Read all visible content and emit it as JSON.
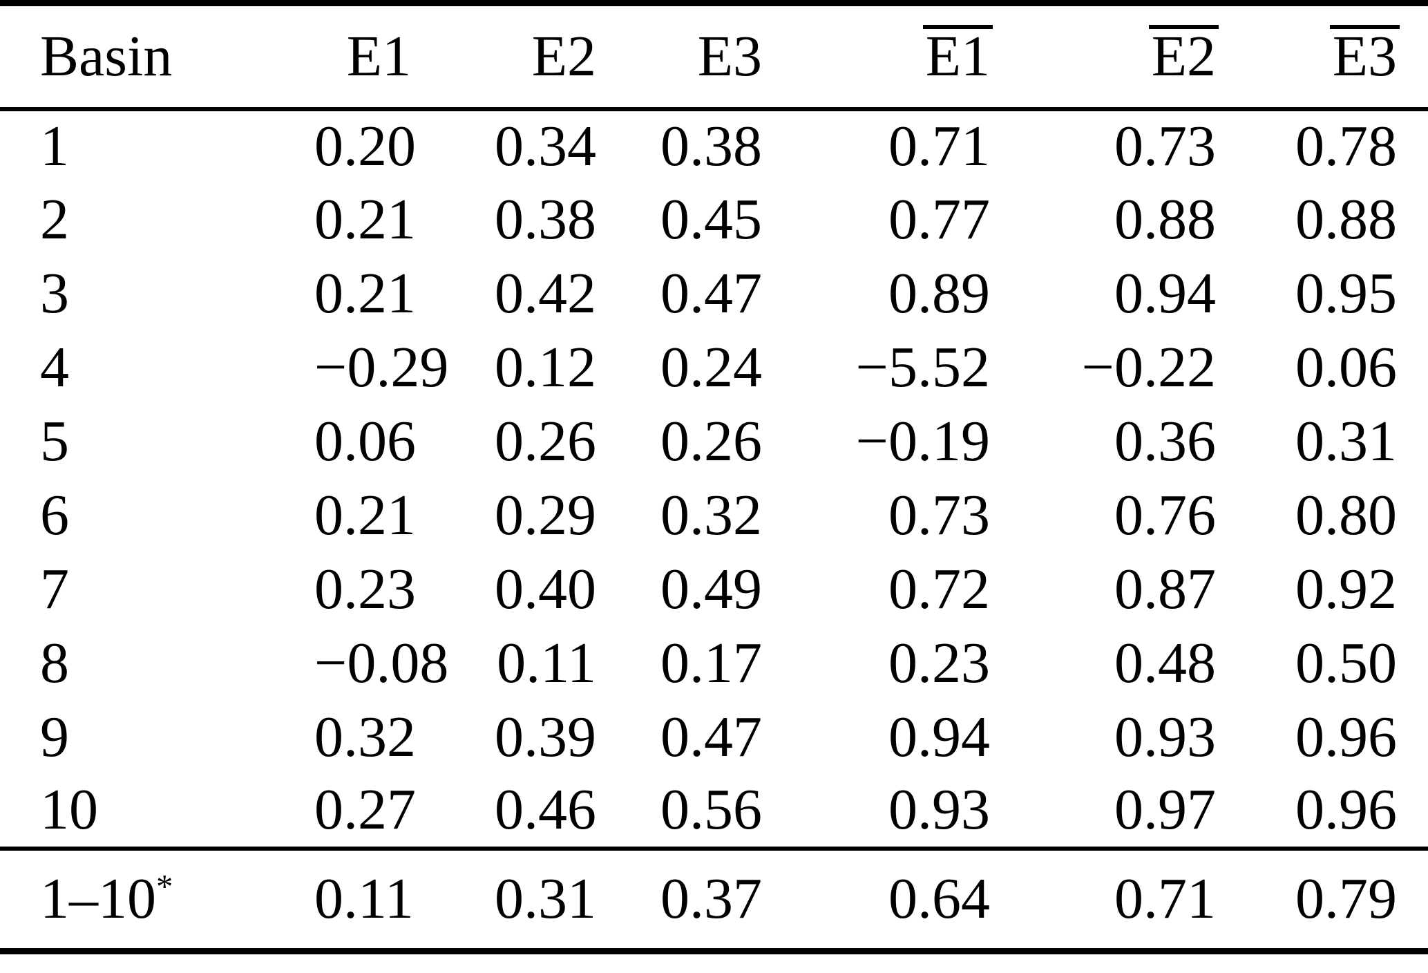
{
  "page": {
    "background_color": "#ffffff",
    "text_color": "#000000"
  },
  "table": {
    "columns": [
      {
        "key": "basin",
        "label": "Basin",
        "overline": false
      },
      {
        "key": "e1",
        "label": "E1",
        "overline": false
      },
      {
        "key": "e2",
        "label": "E2",
        "overline": false
      },
      {
        "key": "e3",
        "label": "E3",
        "overline": false
      },
      {
        "key": "e1-mean",
        "label": "E1",
        "overline": true
      },
      {
        "key": "e2-mean",
        "label": "E2",
        "overline": true
      },
      {
        "key": "e3-mean",
        "label": "E3",
        "overline": true
      }
    ],
    "rows": [
      [
        "1",
        "0.20",
        "0.34",
        "0.38",
        "0.71",
        "0.73",
        "0.78"
      ],
      [
        "2",
        "0.21",
        "0.38",
        "0.45",
        "0.77",
        "0.88",
        "0.88"
      ],
      [
        "3",
        "0.21",
        "0.42",
        "0.47",
        "0.89",
        "0.94",
        "0.95"
      ],
      [
        "4",
        "−0.29",
        "0.12",
        "0.24",
        "−5.52",
        "−0.22",
        "0.06"
      ],
      [
        "5",
        "0.06",
        "0.26",
        "0.26",
        "−0.19",
        "0.36",
        "0.31"
      ],
      [
        "6",
        "0.21",
        "0.29",
        "0.32",
        "0.73",
        "0.76",
        "0.80"
      ],
      [
        "7",
        "0.23",
        "0.40",
        "0.49",
        "0.72",
        "0.87",
        "0.92"
      ],
      [
        "8",
        "−0.08",
        "0.11",
        "0.17",
        "0.23",
        "0.48",
        "0.50"
      ],
      [
        "9",
        "0.32",
        "0.39",
        "0.47",
        "0.94",
        "0.93",
        "0.96"
      ],
      [
        "10",
        "0.27",
        "0.46",
        "0.56",
        "0.93",
        "0.97",
        "0.96"
      ]
    ],
    "summary": {
      "label": "1–10",
      "superscript": "*",
      "values": [
        "0.11",
        "0.31",
        "0.37",
        "0.64",
        "0.71",
        "0.79"
      ]
    }
  }
}
